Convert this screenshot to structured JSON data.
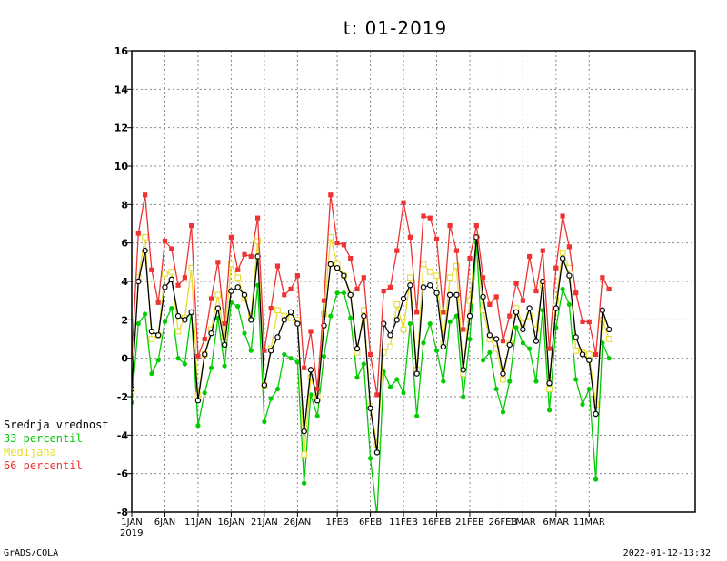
{
  "footer": {
    "left": "GrADS/COLA",
    "right": "2022-01-12-13:32"
  },
  "chart_data": {
    "type": "line",
    "title": "t: 01-2019",
    "ylim": [
      -8,
      16
    ],
    "yticks": [
      -8,
      -6,
      -4,
      -2,
      0,
      2,
      4,
      6,
      8,
      10,
      12,
      14,
      16
    ],
    "grid": true,
    "day_range": [
      1,
      86
    ],
    "year_label": "2019",
    "xticks": [
      {
        "day": 1,
        "label": "1JAN"
      },
      {
        "day": 6,
        "label": "6JAN"
      },
      {
        "day": 11,
        "label": "11JAN"
      },
      {
        "day": 16,
        "label": "16JAN"
      },
      {
        "day": 21,
        "label": "21JAN"
      },
      {
        "day": 26,
        "label": "26JAN"
      },
      {
        "day": 32,
        "label": "1FEB"
      },
      {
        "day": 37,
        "label": "6FEB"
      },
      {
        "day": 42,
        "label": "11FEB"
      },
      {
        "day": 47,
        "label": "16FEB"
      },
      {
        "day": 52,
        "label": "21FEB"
      },
      {
        "day": 57,
        "label": "26FEB"
      },
      {
        "day": 60,
        "label": "1MAR"
      },
      {
        "day": 65,
        "label": "6MAR"
      },
      {
        "day": 70,
        "label": "11MAR"
      }
    ],
    "legend_position": "left",
    "series": [
      {
        "name": "Srednja vrednost",
        "color": "#000000",
        "marker": "circle",
        "values": [
          -1.6,
          4.0,
          5.6,
          1.4,
          1.2,
          3.7,
          4.1,
          2.2,
          2.0,
          2.4,
          -2.2,
          0.2,
          1.3,
          2.6,
          0.7,
          3.5,
          3.7,
          3.3,
          2.0,
          5.3,
          -1.4,
          0.4,
          1.1,
          2.0,
          2.4,
          1.8,
          -3.8,
          -0.6,
          -2.2,
          1.7,
          4.9,
          4.7,
          4.3,
          3.3,
          0.5,
          2.2,
          -2.6,
          -4.9,
          1.8,
          1.2,
          2.0,
          3.1,
          3.8,
          -0.8,
          3.7,
          3.8,
          3.4,
          0.6,
          3.3,
          3.3,
          -0.6,
          2.2,
          6.3,
          3.2,
          1.2,
          1.0,
          -0.8,
          0.7,
          2.4,
          1.5,
          2.6,
          0.9,
          4.0,
          -1.3,
          2.6,
          5.2,
          4.3,
          1.1,
          0.2,
          -0.1,
          -2.9,
          2.5,
          1.5
        ]
      },
      {
        "name": "33 percentil",
        "color": "#00cc00",
        "marker": "circle-filled",
        "values": [
          -2.3,
          1.8,
          2.3,
          -0.8,
          -0.1,
          1.9,
          2.6,
          0.0,
          -0.3,
          2.4,
          -3.5,
          -1.8,
          -0.5,
          2.1,
          -0.4,
          2.9,
          2.7,
          1.3,
          0.4,
          3.8,
          -3.3,
          -2.1,
          -1.6,
          0.2,
          0.0,
          -0.2,
          -6.5,
          -1.9,
          -3.0,
          0.1,
          2.2,
          3.4,
          3.4,
          2.1,
          -1.0,
          -0.3,
          -5.2,
          -8.2,
          -0.7,
          -1.5,
          -1.1,
          -1.8,
          1.8,
          -3.0,
          0.8,
          1.8,
          0.4,
          -1.2,
          1.9,
          2.2,
          -2.0,
          1.0,
          6.0,
          -0.1,
          0.3,
          -1.6,
          -2.8,
          -1.2,
          1.6,
          0.8,
          0.5,
          -1.2,
          2.5,
          -2.7,
          1.6,
          3.6,
          2.8,
          -1.1,
          -2.4,
          -1.6,
          -6.3,
          0.8,
          0.0
        ]
      },
      {
        "name": "Medijana",
        "color": "#e6dc32",
        "marker": "square",
        "values": [
          -1.7,
          4.2,
          6.3,
          1.0,
          1.2,
          4.4,
          4.5,
          1.4,
          2.1,
          4.7,
          -1.9,
          0.2,
          1.5,
          3.3,
          1.1,
          4.9,
          4.2,
          3.1,
          2.2,
          6.1,
          -1.4,
          0.5,
          2.5,
          2.2,
          2.1,
          2.0,
          -5.0,
          -1.0,
          -2.0,
          2.3,
          6.3,
          4.9,
          4.3,
          3.4,
          0.3,
          2.5,
          -2.5,
          -4.5,
          0.3,
          0.6,
          2.8,
          1.5,
          4.2,
          -0.6,
          4.9,
          4.5,
          4.3,
          0.8,
          4.2,
          4.8,
          -0.8,
          3.0,
          6.3,
          2.5,
          1.0,
          0.5,
          -1.1,
          0.8,
          2.6,
          1.8,
          2.2,
          1.5,
          3.8,
          -1.6,
          3.0,
          5.5,
          4.7,
          0.4,
          0.3,
          0.2,
          -2.4,
          2.0,
          1.0
        ]
      },
      {
        "name": "66 percentil",
        "color": "#ee3333",
        "marker": "square-filled",
        "values": [
          0.0,
          6.5,
          8.5,
          4.6,
          2.9,
          6.1,
          5.7,
          3.8,
          4.2,
          6.9,
          0.1,
          1.0,
          3.1,
          5.0,
          1.8,
          6.3,
          4.6,
          5.4,
          5.3,
          7.3,
          0.4,
          2.6,
          4.8,
          3.3,
          3.6,
          4.3,
          -0.5,
          1.4,
          -1.6,
          3.0,
          8.5,
          6.0,
          5.9,
          5.2,
          3.6,
          4.2,
          0.2,
          -1.9,
          3.5,
          3.7,
          5.6,
          8.1,
          6.3,
          2.4,
          7.4,
          7.3,
          6.2,
          2.4,
          6.9,
          5.6,
          1.5,
          5.2,
          6.9,
          4.2,
          2.8,
          3.2,
          0.9,
          2.2,
          3.9,
          3.0,
          5.3,
          3.5,
          5.6,
          0.5,
          4.7,
          7.4,
          5.8,
          3.4,
          1.9,
          1.9,
          0.2,
          4.2,
          3.6
        ]
      }
    ]
  }
}
